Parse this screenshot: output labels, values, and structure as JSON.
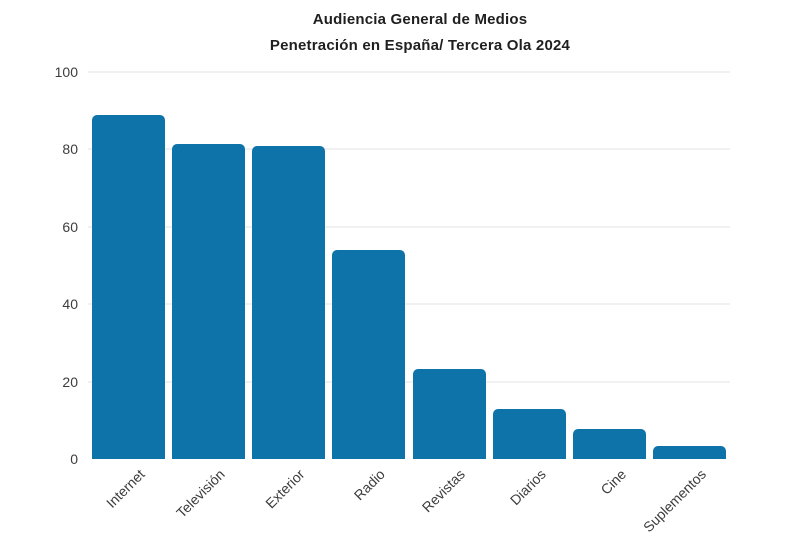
{
  "title": {
    "line1": "Audiencia General de Medios",
    "line2": "Penetración en España/ Tercera Ola 2024"
  },
  "chart_data": {
    "type": "bar",
    "title": "Audiencia General de Medios",
    "subtitle": "Penetración en España/ Tercera Ola 2024",
    "categories": [
      "Internet",
      "Televisión",
      "Exterior",
      "Radio",
      "Revistas",
      "Diarios",
      "Cine",
      "Suplementos"
    ],
    "values": [
      88.8,
      81.4,
      81.0,
      54.1,
      23.3,
      13.0,
      7.8,
      3.4
    ],
    "xlabel": "",
    "ylabel": "",
    "ylim": [
      0,
      100
    ],
    "yticks": [
      0,
      20,
      40,
      60,
      80,
      100
    ],
    "grid": true,
    "legend_position": "none",
    "bar_color": "#0e73a8",
    "gridline_color": "#f1f1f1",
    "text_color": "#3d3d3d",
    "title_color": "#1f1f1f",
    "background_color": "#ffffff"
  }
}
